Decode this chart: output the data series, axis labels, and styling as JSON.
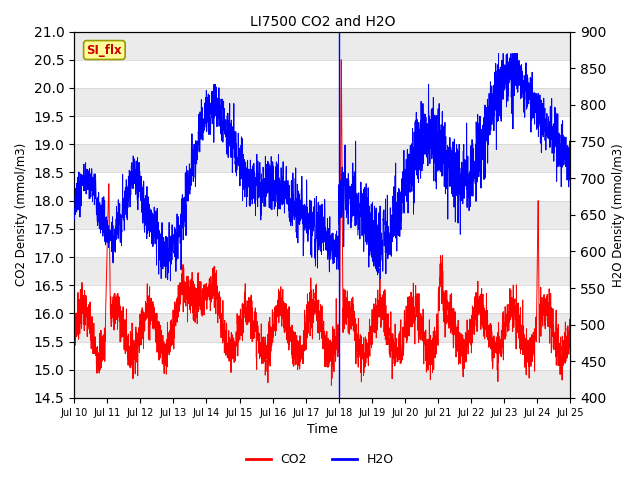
{
  "title": "LI7500 CO2 and H2O",
  "xlabel": "Time",
  "ylabel_left": "CO2 Density (mmol/m3)",
  "ylabel_right": "H2O Density (mmol/m3)",
  "ylim_left": [
    14.5,
    21.0
  ],
  "ylim_right": [
    400,
    900
  ],
  "xtick_labels": [
    "Jul 10",
    "Jul 11",
    "Jul 12",
    "Jul 13",
    "Jul 14",
    "Jul 15",
    "Jul 16",
    "Jul 17",
    "Jul 18",
    "Jul 19",
    "Jul 20",
    "Jul 21",
    "Jul 22",
    "Jul 23",
    "Jul 24",
    "Jul 25"
  ],
  "vline_x": 8.0,
  "legend_label_co2": "CO2",
  "legend_label_h2o": "H2O",
  "co2_color": "#ff0000",
  "h2o_color": "#0000ff",
  "annotation_text": "SI_flx",
  "background_color": "#ffffff",
  "grid_color": "#d0d0d0",
  "n_points": 3000
}
